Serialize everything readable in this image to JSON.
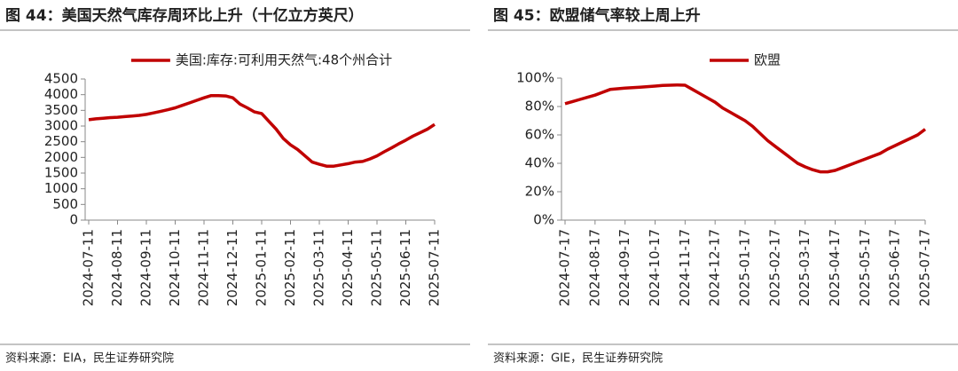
{
  "chart_data": [
    {
      "type": "line",
      "title": "图 44：美国天然气库存周环比上升（十亿立方英尺）",
      "source": "资料来源：EIA，民生证券研究院",
      "categories": [
        "2024-07-11",
        null,
        null,
        null,
        "2024-08-11",
        null,
        null,
        null,
        "2024-09-11",
        null,
        null,
        null,
        "2024-10-11",
        null,
        null,
        null,
        "2024-11-11",
        null,
        null,
        null,
        "2024-12-11",
        null,
        null,
        null,
        "2025-01-11",
        null,
        null,
        null,
        "2025-02-11",
        null,
        null,
        null,
        "2025-03-11",
        null,
        null,
        null,
        "2025-04-11",
        null,
        null,
        null,
        "2025-05-11",
        null,
        null,
        null,
        "2025-06-11",
        null,
        null,
        null,
        "2025-07-11"
      ],
      "series": [
        {
          "name": "美国:库存:可利用天然气:48个州合计",
          "color": "#c00000",
          "values": [
            3200,
            3230,
            3250,
            3270,
            3280,
            3300,
            3320,
            3340,
            3370,
            3420,
            3470,
            3520,
            3580,
            3660,
            3740,
            3820,
            3900,
            3970,
            3970,
            3960,
            3900,
            3700,
            3580,
            3450,
            3400,
            3150,
            2900,
            2600,
            2400,
            2250,
            2050,
            1850,
            1780,
            1720,
            1720,
            1760,
            1800,
            1850,
            1870,
            1950,
            2050,
            2180,
            2300,
            2430,
            2550,
            2680,
            2790,
            2900,
            3050
          ]
        }
      ],
      "ylim": [
        0,
        4500
      ],
      "yticks": [
        0,
        500,
        1000,
        1500,
        2000,
        2500,
        3000,
        3500,
        4000,
        4500
      ],
      "legend": "top"
    },
    {
      "type": "line",
      "title": "图 45：欧盟储气率较上周上升",
      "source": "资料来源：GIE，民生证券研究院",
      "categories": [
        "2024-07-17",
        null,
        null,
        null,
        "2024-08-17",
        null,
        null,
        null,
        "2024-09-17",
        null,
        null,
        null,
        "2024-10-17",
        null,
        null,
        null,
        "2024-11-17",
        null,
        null,
        null,
        "2024-12-17",
        null,
        null,
        null,
        "2025-01-17",
        null,
        null,
        null,
        "2025-02-17",
        null,
        null,
        null,
        "2025-03-17",
        null,
        null,
        null,
        "2025-04-17",
        null,
        null,
        null,
        "2025-05-17",
        null,
        null,
        null,
        "2025-06-17",
        null,
        null,
        null,
        "2025-07-17"
      ],
      "series": [
        {
          "name": "欧盟",
          "color": "#c00000",
          "values": [
            82,
            83.5,
            85,
            86.5,
            88,
            90,
            92,
            92.5,
            93,
            93.3,
            93.6,
            94,
            94.4,
            94.8,
            95,
            95.2,
            95,
            92,
            89,
            86,
            83,
            79,
            76,
            73,
            70,
            66,
            61,
            56,
            52,
            48,
            44,
            40,
            37.5,
            35.5,
            34,
            34,
            35,
            37,
            39,
            41,
            43,
            45,
            47,
            50,
            52.5,
            55,
            57.5,
            60,
            64
          ]
        }
      ],
      "ylim": [
        0,
        100
      ],
      "yticks": [
        {
          "value": 0,
          "label": "0%"
        },
        {
          "value": 20,
          "label": "20%"
        },
        {
          "value": 40,
          "label": "40%"
        },
        {
          "value": 60,
          "label": "60%"
        },
        {
          "value": 80,
          "label": "80%"
        },
        {
          "value": 100,
          "label": "100%"
        }
      ],
      "legend": "top"
    }
  ]
}
